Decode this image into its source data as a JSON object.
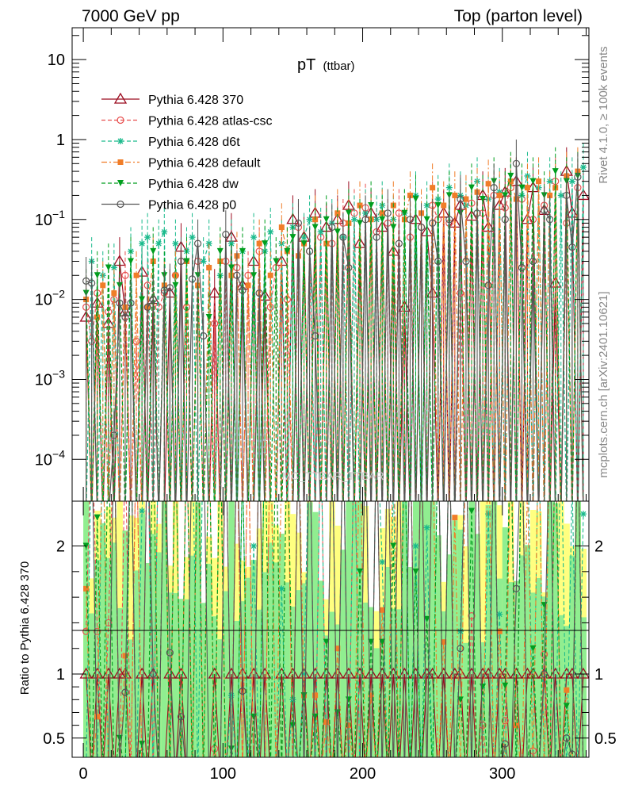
{
  "header": {
    "left": "7000 GeV pp",
    "right": "Top (parton level)"
  },
  "side_labels": {
    "rivet": "Rivet 4.1.0, ≥ 100k events",
    "mcplots": "mcplots.cern.ch [arXiv:2401.10621]"
  },
  "watermark": "MC_TTBAR_TTBAR",
  "chart_data": {
    "type": "line",
    "title": "pT",
    "subtitle": "(ttbar)",
    "xlabel": "",
    "ylabel": "",
    "ratio_ylabel": "Ratio to Pythia 6.428 370",
    "xlim": [
      -8,
      362
    ],
    "ylim": [
      3e-05,
      25
    ],
    "yscale": "log",
    "ratio_ylim": [
      0.35,
      2.35
    ],
    "x_ticks": [
      "0",
      "100",
      "200",
      "300"
    ],
    "y_ticks": [
      "10^-4",
      "10^-3",
      "10^-2",
      "10^-1",
      "1",
      "10"
    ],
    "ratio_y_ticks": [
      "0.5",
      "1",
      "2"
    ],
    "bin_width": 4,
    "bin_centers": [
      2,
      6,
      10,
      14,
      18,
      22,
      26,
      30,
      34,
      38,
      42,
      46,
      50,
      54,
      58,
      62,
      66,
      70,
      74,
      78,
      82,
      86,
      90,
      94,
      98,
      102,
      106,
      110,
      114,
      118,
      122,
      126,
      130,
      134,
      138,
      142,
      146,
      150,
      154,
      158,
      162,
      166,
      170,
      174,
      178,
      182,
      186,
      190,
      194,
      198,
      202,
      206,
      210,
      214,
      218,
      222,
      226,
      230,
      234,
      238,
      242,
      246,
      250,
      254,
      258,
      262,
      266,
      270,
      274,
      278,
      282,
      286,
      290,
      294,
      298,
      302,
      306,
      310,
      314,
      318,
      322,
      326,
      330,
      334,
      338,
      342,
      346,
      350,
      354,
      358
    ],
    "series": [
      {
        "name": "Pythia 6.428 370",
        "color": "#9b0a1e",
        "marker": "triangle-open",
        "dash": "solid",
        "values": [
          0.006,
          0,
          0.009,
          0,
          0.005,
          0,
          0.03,
          0.007,
          0,
          0,
          0.022,
          0,
          0.01,
          0,
          0,
          0.012,
          0,
          0.045,
          0,
          0,
          0,
          0,
          0,
          0.012,
          0,
          0,
          0.06,
          0,
          0.015,
          0,
          0.03,
          0,
          0.011,
          0,
          0,
          0.03,
          0,
          0.1,
          0,
          0.06,
          0,
          0.12,
          0,
          0.08,
          0,
          0.1,
          0,
          0.15,
          0,
          0.05,
          0,
          0.12,
          0,
          0.08,
          0,
          0.04,
          0,
          0.008,
          0,
          0.1,
          0,
          0.07,
          0.012,
          0,
          0.12,
          0,
          0.09,
          0.15,
          0,
          0.11,
          0,
          0.2,
          0.08,
          0,
          0.15,
          0.22,
          0,
          0.3,
          0,
          0.1,
          0.25,
          0,
          0.13,
          0,
          0.016,
          0,
          0.4,
          0.12,
          0,
          0.2
        ]
      },
      {
        "name": "Pythia 6.428 atlas-csc",
        "color": "#e8504f",
        "marker": "circle-open",
        "dash": "dashed",
        "values": [
          0.008,
          0.003,
          0.012,
          0,
          0.007,
          0.01,
          0,
          0.02,
          0,
          0.003,
          0,
          0.015,
          0,
          0.008,
          0.012,
          0,
          0.02,
          0,
          0.008,
          0,
          0.03,
          0,
          0,
          0.005,
          0,
          0.03,
          0,
          0.025,
          0,
          0.02,
          0,
          0.04,
          0,
          0.008,
          0.025,
          0,
          0.01,
          0,
          0.08,
          0,
          0.04,
          0,
          0.06,
          0,
          0.05,
          0,
          0.09,
          0,
          0.12,
          0,
          0.14,
          0,
          0.07,
          0,
          0.09,
          0,
          0.12,
          0,
          0.06,
          0,
          0.08,
          0,
          0.15,
          0.1,
          0,
          0.09,
          0,
          0.012,
          0,
          0.16,
          0,
          0.12,
          0,
          0.2,
          0,
          0.14,
          0.25,
          0,
          0.18,
          0,
          0.1,
          0,
          0.15,
          0,
          0.3,
          0,
          0.09,
          0,
          0.25,
          0
        ]
      },
      {
        "name": "Pythia 6.428 d6t",
        "color": "#1aba8c",
        "marker": "star",
        "dash": "dashed",
        "values": [
          0,
          0.03,
          0,
          0.02,
          0,
          0.025,
          0,
          0,
          0.04,
          0,
          0.05,
          0.06,
          0,
          0.05,
          0.07,
          0,
          0.05,
          0,
          0.04,
          0.06,
          0,
          0.03,
          0.05,
          0,
          0.02,
          0,
          0.05,
          0,
          0.04,
          0,
          0.06,
          0,
          0.04,
          0.07,
          0,
          0.05,
          0,
          0.08,
          0,
          0.06,
          0.1,
          0,
          0.07,
          0,
          0.09,
          0,
          0.06,
          0,
          0.1,
          0,
          0.12,
          0,
          0.1,
          0.15,
          0,
          0.1,
          0,
          0.12,
          0,
          0.2,
          0,
          0.15,
          0,
          0.18,
          0,
          0.25,
          0,
          0.2,
          0.15,
          0,
          0.3,
          0,
          0.18,
          0,
          0.22,
          0,
          0.3,
          0,
          0.2,
          0.35,
          0,
          0.25,
          0,
          0.3,
          0,
          0.2,
          0,
          0.3,
          0,
          0.45
        ]
      },
      {
        "name": "Pythia 6.428 default",
        "color": "#f07d28",
        "marker": "square",
        "dash": "dashdot",
        "values": [
          0.01,
          0,
          0.006,
          0.015,
          0,
          0.012,
          0,
          0.008,
          0,
          0.02,
          0,
          0.008,
          0.03,
          0,
          0.015,
          0,
          0.02,
          0,
          0.03,
          0,
          0.015,
          0,
          0.025,
          0,
          0.03,
          0,
          0.02,
          0.035,
          0,
          0.015,
          0,
          0.05,
          0,
          0.02,
          0,
          0.08,
          0.04,
          0,
          0.035,
          0.05,
          0,
          0.1,
          0,
          0.05,
          0,
          0.12,
          0,
          0.09,
          0,
          0.15,
          0,
          0.1,
          0,
          0.12,
          0,
          0.15,
          0,
          0.1,
          0.2,
          0,
          0.12,
          0,
          0.25,
          0,
          0.15,
          0,
          0.2,
          0,
          0.18,
          0,
          0.22,
          0,
          0.28,
          0,
          0.2,
          0,
          0.3,
          0.18,
          0,
          0.25,
          0,
          0.3,
          0,
          0.2,
          0.25,
          0,
          0.35,
          0,
          0.4,
          0
        ]
      },
      {
        "name": "Pythia 6.428 dw",
        "color": "#009e1e",
        "marker": "triangle-down",
        "dash": "dashed",
        "values": [
          0.012,
          0,
          0.02,
          0,
          0.025,
          0,
          0.015,
          0,
          0.03,
          0,
          0.01,
          0,
          0.04,
          0,
          0.02,
          0,
          0.015,
          0,
          0.03,
          0,
          0.02,
          0,
          0.006,
          0,
          0.04,
          0,
          0.025,
          0,
          0.04,
          0,
          0.02,
          0,
          0.05,
          0,
          0.03,
          0,
          0.04,
          0.06,
          0,
          0.05,
          0,
          0.08,
          0,
          0.1,
          0,
          0.07,
          0,
          0.12,
          0,
          0.09,
          0,
          0.15,
          0,
          0.1,
          0,
          0.08,
          0,
          0.12,
          0,
          0.18,
          0,
          0.1,
          0,
          0.15,
          0,
          0.2,
          0,
          0.12,
          0,
          0.25,
          0,
          0.18,
          0,
          0.3,
          0,
          0.2,
          0.35,
          0,
          0.25,
          0,
          0.3,
          0,
          0.2,
          0,
          0.4,
          0,
          0.3,
          0,
          0.35,
          0
        ]
      },
      {
        "name": "Pythia 6.428 p0",
        "color": "#555555",
        "marker": "circle-open",
        "dash": "solid",
        "values": [
          0.017,
          0.016,
          0,
          0,
          0,
          0.0002,
          0.009,
          0.006,
          0.009,
          0,
          0,
          0.008,
          0.01,
          0,
          0.013,
          0.014,
          0,
          0.03,
          0,
          0.018,
          0.05,
          0.0035,
          0,
          0,
          0,
          0.065,
          0,
          0.02,
          0.013,
          0,
          0,
          0.012,
          0,
          0,
          0,
          0,
          0,
          0,
          0.09,
          0,
          0.04,
          0.0035,
          0,
          0,
          0.08,
          0,
          0.06,
          0.025,
          0,
          0,
          0.1,
          0,
          0.06,
          0,
          0.12,
          0,
          0.05,
          0,
          0.1,
          0,
          0.08,
          0,
          0.09,
          0.03,
          0,
          0.1,
          0,
          0.18,
          0.03,
          0,
          0.12,
          0,
          0.015,
          0.25,
          0,
          0.1,
          0,
          0.5,
          0.025,
          0,
          0.03,
          0,
          0.13,
          0.1,
          0,
          0,
          0.2,
          0.045,
          0.34,
          0
        ]
      }
    ]
  }
}
